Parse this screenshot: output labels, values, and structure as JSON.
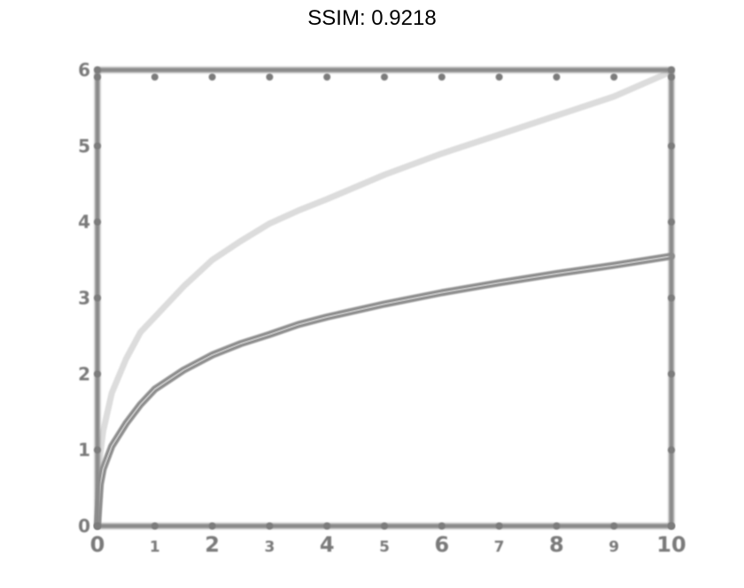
{
  "chart_data": {
    "type": "line",
    "title": "SSIM: 0.9218",
    "xlabel": "",
    "ylabel": "",
    "xlim": [
      0,
      10
    ],
    "ylim": [
      0,
      6
    ],
    "grid": false,
    "x_ticks": [
      0,
      1,
      2,
      3,
      4,
      5,
      6,
      7,
      8,
      9,
      10
    ],
    "y_ticks": [
      0,
      1,
      2,
      3,
      4,
      5,
      6
    ],
    "series": [
      {
        "color": "#dcdcdc",
        "style": "blurred",
        "x": [
          0,
          0.05,
          0.1,
          0.25,
          0.5,
          0.75,
          1,
          1.5,
          2,
          2.5,
          3,
          3.5,
          4,
          5,
          6,
          7,
          8,
          9,
          10
        ],
        "y": [
          0,
          0.95,
          1.25,
          1.75,
          2.2,
          2.55,
          2.75,
          3.15,
          3.5,
          3.75,
          3.98,
          4.15,
          4.3,
          4.62,
          4.9,
          5.15,
          5.4,
          5.65,
          5.98
        ]
      },
      {
        "color": "#8f8f8f",
        "style": "blurred",
        "x": [
          0,
          0.05,
          0.1,
          0.25,
          0.5,
          0.75,
          1,
          1.5,
          2,
          2.5,
          3,
          3.5,
          4,
          5,
          6,
          7,
          8,
          9,
          10
        ],
        "y": [
          0,
          0.55,
          0.75,
          1.05,
          1.35,
          1.6,
          1.8,
          2.05,
          2.25,
          2.4,
          2.52,
          2.65,
          2.75,
          2.92,
          3.07,
          3.2,
          3.32,
          3.43,
          3.55
        ]
      }
    ]
  }
}
